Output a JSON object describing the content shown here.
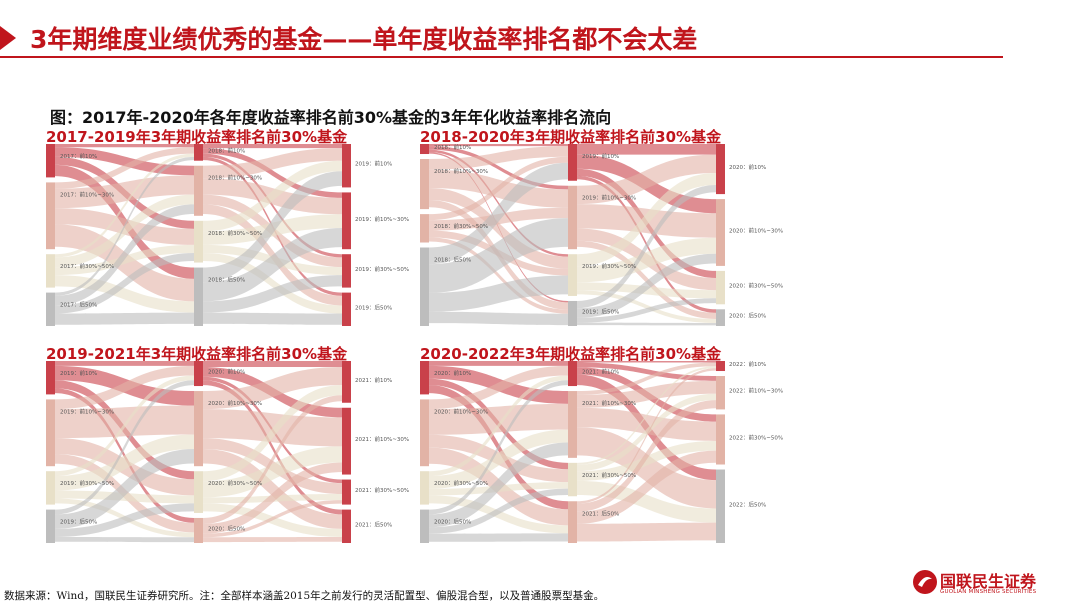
{
  "header": {
    "title": "3年期维度业绩优秀的基金——单年度收益率排名都不会太差"
  },
  "figure": {
    "caption": "图：2017年-2020年各年度收益率排名前30%基金的3年年化收益率排名流向"
  },
  "colors": {
    "accent": "#c0151c",
    "flow_red": "#c9414a",
    "flow_pink": "#e2b3a6",
    "flow_cream": "#e8e0c8",
    "flow_gray": "#bdbdbd"
  },
  "panels": [
    {
      "title": "2017-2019年3年期收益率排名前30%基金",
      "columns": [
        [
          {
            "label": "2017：前10%",
            "share": 0.2,
            "color": "red"
          },
          {
            "label": "2017：前10%~30%",
            "share": 0.4,
            "color": "pink"
          },
          {
            "label": "2017：前30%~50%",
            "share": 0.2,
            "color": "cream"
          },
          {
            "label": "2017：后50%",
            "share": 0.2,
            "color": "gray"
          }
        ],
        [
          {
            "label": "2018：前10%",
            "share": 0.1,
            "color": "red"
          },
          {
            "label": "2018：前10%~30%",
            "share": 0.3,
            "color": "pink"
          },
          {
            "label": "2018：前30%~50%",
            "share": 0.25,
            "color": "cream"
          },
          {
            "label": "2018：后50%",
            "share": 0.35,
            "color": "gray"
          }
        ],
        [
          {
            "label": "2019：前10%",
            "share": 0.26,
            "color": "red"
          },
          {
            "label": "2019：前10%~30%",
            "share": 0.34,
            "color": "red"
          },
          {
            "label": "2019：前30%~50%",
            "share": 0.2,
            "color": "red"
          },
          {
            "label": "2019：后50%",
            "share": 0.2,
            "color": "red"
          }
        ]
      ]
    },
    {
      "title": "2018-2020年3年期收益率排名前30%基金",
      "columns": [
        [
          {
            "label": "2018：前10%",
            "share": 0.06,
            "color": "red"
          },
          {
            "label": "2018：前10%~30%",
            "share": 0.3,
            "color": "pink"
          },
          {
            "label": "2018：前30%~50%",
            "share": 0.17,
            "color": "pink"
          },
          {
            "label": "2018：后50%",
            "share": 0.47,
            "color": "gray"
          }
        ],
        [
          {
            "label": "2019：前10%",
            "share": 0.22,
            "color": "red"
          },
          {
            "label": "2019：前10%~30%",
            "share": 0.38,
            "color": "pink"
          },
          {
            "label": "2019：前30%~50%",
            "share": 0.25,
            "color": "cream"
          },
          {
            "label": "2019：后50%",
            "share": 0.15,
            "color": "gray"
          }
        ],
        [
          {
            "label": "2020：前10%",
            "share": 0.3,
            "color": "red"
          },
          {
            "label": "2020：前10%~30%",
            "share": 0.4,
            "color": "pink"
          },
          {
            "label": "2020：前30%~50%",
            "share": 0.2,
            "color": "cream"
          },
          {
            "label": "2020：后50%",
            "share": 0.1,
            "color": "gray"
          }
        ]
      ]
    },
    {
      "title": "2019-2021年3年期收益率排名前30%基金",
      "columns": [
        [
          {
            "label": "2019：前10%",
            "share": 0.2,
            "color": "red"
          },
          {
            "label": "2019：前10%~30%",
            "share": 0.4,
            "color": "pink"
          },
          {
            "label": "2019：前30%~50%",
            "share": 0.2,
            "color": "cream"
          },
          {
            "label": "2019：后50%",
            "share": 0.2,
            "color": "gray"
          }
        ],
        [
          {
            "label": "2020：前10%",
            "share": 0.15,
            "color": "red"
          },
          {
            "label": "2020：前10%~30%",
            "share": 0.45,
            "color": "pink"
          },
          {
            "label": "2020：前30%~50%",
            "share": 0.25,
            "color": "cream"
          },
          {
            "label": "2020：后50%",
            "share": 0.15,
            "color": "pink"
          }
        ],
        [
          {
            "label": "2021：前10%",
            "share": 0.25,
            "color": "red"
          },
          {
            "label": "2021：前10%~30%",
            "share": 0.4,
            "color": "red"
          },
          {
            "label": "2021：前30%~50%",
            "share": 0.15,
            "color": "red"
          },
          {
            "label": "2021：后50%",
            "share": 0.2,
            "color": "red"
          }
        ]
      ]
    },
    {
      "title": "2020-2022年3年期收益率排名前30%基金",
      "columns": [
        [
          {
            "label": "2020：前10%",
            "share": 0.2,
            "color": "red"
          },
          {
            "label": "2020：前10%~30%",
            "share": 0.4,
            "color": "pink"
          },
          {
            "label": "2020：前30%~50%",
            "share": 0.2,
            "color": "cream"
          },
          {
            "label": "2020：后50%",
            "share": 0.2,
            "color": "gray"
          }
        ],
        [
          {
            "label": "2021：前10%",
            "share": 0.15,
            "color": "red"
          },
          {
            "label": "2021：前10%~30%",
            "share": 0.4,
            "color": "pink"
          },
          {
            "label": "2021：前30%~50%",
            "share": 0.2,
            "color": "cream"
          },
          {
            "label": "2021：后50%",
            "share": 0.25,
            "color": "pink"
          }
        ],
        [
          {
            "label": "2022：前10%",
            "share": 0.06,
            "color": "red"
          },
          {
            "label": "2022：前10%~30%",
            "share": 0.2,
            "color": "pink"
          },
          {
            "label": "2022：前30%~50%",
            "share": 0.3,
            "color": "pink"
          },
          {
            "label": "2022：后50%",
            "share": 0.44,
            "color": "gray"
          }
        ]
      ]
    }
  ],
  "footer": {
    "note": "数据来源：Wind，国联民生证券研究所。注：全部样本涵盖2015年之前发行的灵活配置型、偏股混合型，以及普通股票型基金。"
  },
  "logo": {
    "name_cn": "国联民生证券",
    "name_en": "GUOLIAN MINSHENG SECURITIES"
  }
}
